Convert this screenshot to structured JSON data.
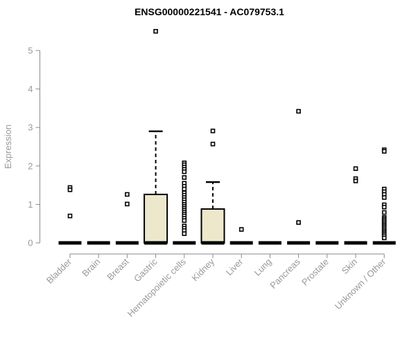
{
  "chart": {
    "colors": {
      "box_fill": "#EDE8CC",
      "box_border": "#000000",
      "axis_line": "#8a8a8a",
      "tick_label": "#999999",
      "title": "#000000",
      "outlier_stroke": "#000000",
      "outlier_fill": "#ffffff",
      "background": "#ffffff"
    }
  },
  "chart_data": {
    "type": "boxplot",
    "title": "ENSG00000221541 - AC079753.1",
    "xlabel": "",
    "ylabel": "Expression",
    "ylim": [
      0,
      5
    ],
    "yticks": [
      0,
      1,
      2,
      3,
      4,
      5
    ],
    "grid": false,
    "legend": false,
    "categories": [
      "Bladder",
      "Brain",
      "Breast",
      "Gastric",
      "Hematopoietic cells",
      "Kidney",
      "Liver",
      "Lung",
      "Pancreas",
      "Prostate",
      "Skin",
      "Unknown / Other"
    ],
    "boxes": [
      {
        "category": "Bladder",
        "q1": 0,
        "median": 0,
        "q3": 0,
        "whisker_low": 0,
        "whisker_high": 0,
        "outliers": [
          1.44,
          1.38,
          0.7
        ]
      },
      {
        "category": "Brain",
        "q1": 0,
        "median": 0,
        "q3": 0,
        "whisker_low": 0,
        "whisker_high": 0,
        "outliers": []
      },
      {
        "category": "Breast",
        "q1": 0,
        "median": 0,
        "q3": 0,
        "whisker_low": 0,
        "whisker_high": 0,
        "outliers": [
          1.26,
          1.01
        ]
      },
      {
        "category": "Gastric",
        "q1": 0,
        "median": 0,
        "q3": 1.26,
        "whisker_low": 0,
        "whisker_high": 2.9,
        "outliers": [
          5.5
        ]
      },
      {
        "category": "Hematopoietic cells",
        "q1": 0,
        "median": 0,
        "q3": 0,
        "whisker_low": 0,
        "whisker_high": 0,
        "outliers": [
          2.08,
          2.03,
          1.97,
          1.91,
          1.85,
          1.7,
          1.55,
          1.47,
          1.4,
          1.3,
          1.24,
          1.18,
          1.12,
          1.06,
          1.0,
          0.95,
          0.9,
          0.85,
          0.8,
          0.75,
          0.7,
          0.64,
          0.58,
          0.44,
          0.38,
          0.32,
          0.24
        ]
      },
      {
        "category": "Kidney",
        "q1": 0,
        "median": 0,
        "q3": 0.88,
        "whisker_low": 0,
        "whisker_high": 1.58,
        "outliers": [
          2.91,
          2.57
        ]
      },
      {
        "category": "Liver",
        "q1": 0,
        "median": 0,
        "q3": 0,
        "whisker_low": 0,
        "whisker_high": 0,
        "outliers": [
          0.35
        ]
      },
      {
        "category": "Lung",
        "q1": 0,
        "median": 0,
        "q3": 0,
        "whisker_low": 0,
        "whisker_high": 0,
        "outliers": []
      },
      {
        "category": "Pancreas",
        "q1": 0,
        "median": 0,
        "q3": 0,
        "whisker_low": 0,
        "whisker_high": 0,
        "outliers": [
          3.42,
          0.53
        ]
      },
      {
        "category": "Prostate",
        "q1": 0,
        "median": 0,
        "q3": 0,
        "whisker_low": 0,
        "whisker_high": 0,
        "outliers": []
      },
      {
        "category": "Skin",
        "q1": 0,
        "median": 0,
        "q3": 0,
        "whisker_low": 0,
        "whisker_high": 0,
        "outliers": [
          1.93,
          1.67,
          1.61
        ]
      },
      {
        "category": "Unknown / Other",
        "q1": 0,
        "median": 0,
        "q3": 0,
        "whisker_low": 0,
        "whisker_high": 0,
        "outliers": [
          2.42,
          2.38,
          1.4,
          1.33,
          1.26,
          1.18,
          0.99,
          0.93,
          0.79,
          0.66,
          0.62,
          0.58,
          0.54,
          0.5,
          0.46,
          0.42,
          0.38,
          0.34,
          0.3,
          0.26,
          0.22,
          0.18,
          0.13
        ]
      }
    ]
  }
}
